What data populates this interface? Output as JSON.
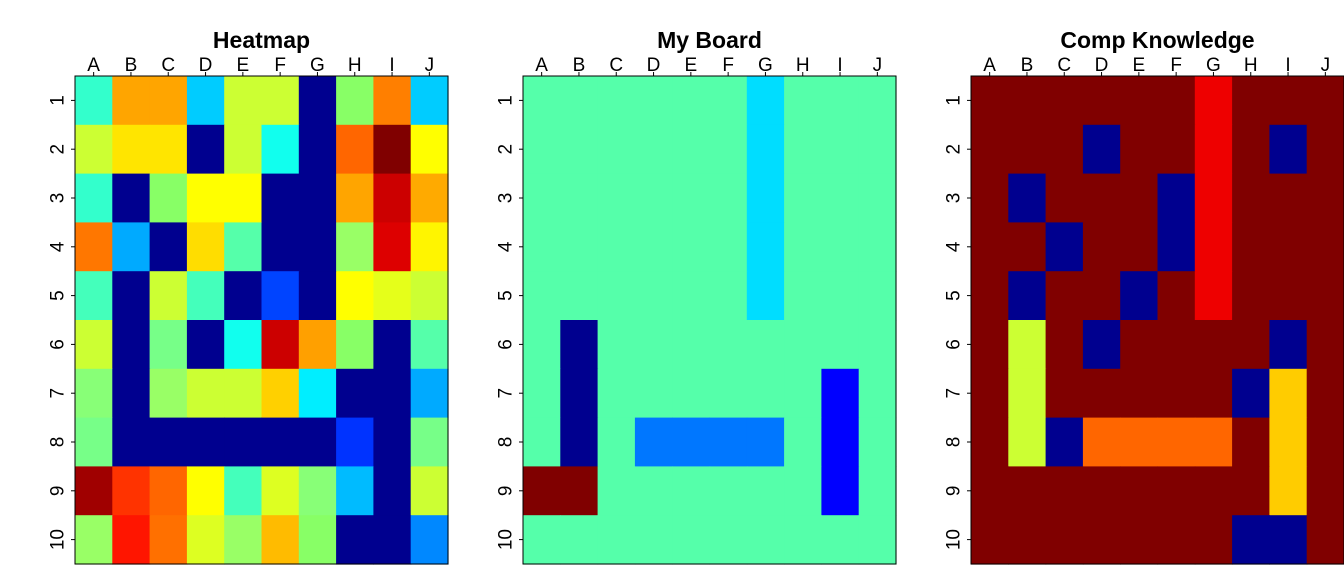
{
  "columns": [
    "A",
    "B",
    "C",
    "D",
    "E",
    "F",
    "G",
    "H",
    "I",
    "J"
  ],
  "rows": [
    "1",
    "2",
    "3",
    "4",
    "5",
    "6",
    "7",
    "8",
    "9",
    "10"
  ],
  "chart_data": [
    {
      "type": "heatmap",
      "title": "Heatmap",
      "xlabel": "",
      "ylabel": "",
      "x_tick_labels": [
        "A",
        "B",
        "C",
        "D",
        "E",
        "F",
        "G",
        "H",
        "I",
        "J"
      ],
      "y_tick_labels": [
        "1",
        "2",
        "3",
        "4",
        "5",
        "6",
        "7",
        "8",
        "9",
        "10"
      ],
      "x_axis_position": "top",
      "grid": false,
      "legend": false,
      "cells": [
        [
          "#33FFCC",
          "#FFA500",
          "#FFA500",
          "#00CCFF",
          "#CCFF33",
          "#CCFF33",
          "#00008F",
          "#88FF66",
          "#FF7F00",
          "#00CCFF"
        ],
        [
          "#CCFF33",
          "#FFE500",
          "#FFE500",
          "#00008F",
          "#CCFF33",
          "#11FFEE",
          "#00008F",
          "#FF6600",
          "#800000",
          "#FFFF00"
        ],
        [
          "#33FFCC",
          "#00008F",
          "#88FF66",
          "#FFFF00",
          "#FFFF00",
          "#00008F",
          "#00008F",
          "#FFA500",
          "#CC0000",
          "#FFAA00"
        ],
        [
          "#FF7700",
          "#00AAFF",
          "#00008F",
          "#FFDD00",
          "#55FFAA",
          "#00008F",
          "#00008F",
          "#99FF66",
          "#DD0000",
          "#FFF500"
        ],
        [
          "#44FFBB",
          "#00008F",
          "#CCFF33",
          "#44FFBB",
          "#00008F",
          "#0044FF",
          "#00008F",
          "#FFFF00",
          "#E5FF1A",
          "#CCFF33"
        ],
        [
          "#CCFF33",
          "#00008F",
          "#77FF88",
          "#00008F",
          "#11FFEE",
          "#CC0000",
          "#FFA000",
          "#88FF66",
          "#00008F",
          "#55FFAA"
        ],
        [
          "#88FF77",
          "#00008F",
          "#99FF66",
          "#CCFF33",
          "#CCFF33",
          "#FFD000",
          "#00EEFF",
          "#00008F",
          "#00008F",
          "#00AAFF"
        ],
        [
          "#77FF88",
          "#00008F",
          "#00008F",
          "#00008F",
          "#00008F",
          "#00008F",
          "#00008F",
          "#0033FF",
          "#00008F",
          "#77FF88"
        ],
        [
          "#A00000",
          "#FF3300",
          "#FF6600",
          "#FFFF00",
          "#44FFBB",
          "#DDFF22",
          "#88FF77",
          "#00BBFF",
          "#00008F",
          "#CCFF33"
        ],
        [
          "#99FF66",
          "#FF1500",
          "#FF7000",
          "#DDFF22",
          "#99FF66",
          "#FFBB00",
          "#88FF66",
          "#00008F",
          "#00008F",
          "#0088FF"
        ]
      ]
    },
    {
      "type": "heatmap",
      "title": "My Board",
      "xlabel": "",
      "ylabel": "",
      "x_tick_labels": [
        "A",
        "B",
        "C",
        "D",
        "E",
        "F",
        "G",
        "H",
        "I",
        "J"
      ],
      "y_tick_labels": [
        "1",
        "2",
        "3",
        "4",
        "5",
        "6",
        "7",
        "8",
        "9",
        "10"
      ],
      "x_axis_position": "top",
      "grid": false,
      "legend": false,
      "cells": [
        [
          "#55FFAA",
          "#55FFAA",
          "#55FFAA",
          "#55FFAA",
          "#55FFAA",
          "#55FFAA",
          "#00DDFF",
          "#55FFAA",
          "#55FFAA",
          "#55FFAA"
        ],
        [
          "#55FFAA",
          "#55FFAA",
          "#55FFAA",
          "#55FFAA",
          "#55FFAA",
          "#55FFAA",
          "#00DDFF",
          "#55FFAA",
          "#55FFAA",
          "#55FFAA"
        ],
        [
          "#55FFAA",
          "#55FFAA",
          "#55FFAA",
          "#55FFAA",
          "#55FFAA",
          "#55FFAA",
          "#00DDFF",
          "#55FFAA",
          "#55FFAA",
          "#55FFAA"
        ],
        [
          "#55FFAA",
          "#55FFAA",
          "#55FFAA",
          "#55FFAA",
          "#55FFAA",
          "#55FFAA",
          "#00DDFF",
          "#55FFAA",
          "#55FFAA",
          "#55FFAA"
        ],
        [
          "#55FFAA",
          "#55FFAA",
          "#55FFAA",
          "#55FFAA",
          "#55FFAA",
          "#55FFAA",
          "#00DDFF",
          "#55FFAA",
          "#55FFAA",
          "#55FFAA"
        ],
        [
          "#55FFAA",
          "#00008F",
          "#55FFAA",
          "#55FFAA",
          "#55FFAA",
          "#55FFAA",
          "#55FFAA",
          "#55FFAA",
          "#55FFAA",
          "#55FFAA"
        ],
        [
          "#55FFAA",
          "#00008F",
          "#55FFAA",
          "#55FFAA",
          "#55FFAA",
          "#55FFAA",
          "#55FFAA",
          "#55FFAA",
          "#0000FF",
          "#55FFAA"
        ],
        [
          "#55FFAA",
          "#00008F",
          "#55FFAA",
          "#0077FF",
          "#0077FF",
          "#0077FF",
          "#0077FF",
          "#55FFAA",
          "#0000FF",
          "#55FFAA"
        ],
        [
          "#800000",
          "#800000",
          "#55FFAA",
          "#55FFAA",
          "#55FFAA",
          "#55FFAA",
          "#55FFAA",
          "#55FFAA",
          "#0000FF",
          "#55FFAA"
        ],
        [
          "#55FFAA",
          "#55FFAA",
          "#55FFAA",
          "#55FFAA",
          "#55FFAA",
          "#55FFAA",
          "#55FFAA",
          "#55FFAA",
          "#55FFAA",
          "#55FFAA"
        ]
      ]
    },
    {
      "type": "heatmap",
      "title": "Comp Knowledge",
      "xlabel": "",
      "ylabel": "",
      "x_tick_labels": [
        "A",
        "B",
        "C",
        "D",
        "E",
        "F",
        "G",
        "H",
        "I",
        "J"
      ],
      "y_tick_labels": [
        "1",
        "2",
        "3",
        "4",
        "5",
        "6",
        "7",
        "8",
        "9",
        "10"
      ],
      "x_axis_position": "top",
      "grid": false,
      "legend": false,
      "cells": [
        [
          "#800000",
          "#800000",
          "#800000",
          "#800000",
          "#800000",
          "#800000",
          "#EE0000",
          "#800000",
          "#800000",
          "#800000"
        ],
        [
          "#800000",
          "#800000",
          "#800000",
          "#00008F",
          "#800000",
          "#800000",
          "#EE0000",
          "#800000",
          "#00008F",
          "#800000"
        ],
        [
          "#800000",
          "#00008F",
          "#800000",
          "#800000",
          "#800000",
          "#00008F",
          "#EE0000",
          "#800000",
          "#800000",
          "#800000"
        ],
        [
          "#800000",
          "#800000",
          "#00008F",
          "#800000",
          "#800000",
          "#00008F",
          "#EE0000",
          "#800000",
          "#800000",
          "#800000"
        ],
        [
          "#800000",
          "#00008F",
          "#800000",
          "#800000",
          "#00008F",
          "#800000",
          "#EE0000",
          "#800000",
          "#800000",
          "#800000"
        ],
        [
          "#800000",
          "#CCFF33",
          "#800000",
          "#00008F",
          "#800000",
          "#800000",
          "#800000",
          "#800000",
          "#00008F",
          "#800000"
        ],
        [
          "#800000",
          "#CCFF33",
          "#800000",
          "#800000",
          "#800000",
          "#800000",
          "#800000",
          "#00008F",
          "#FFCC00",
          "#800000"
        ],
        [
          "#800000",
          "#CCFF33",
          "#00008F",
          "#FF6600",
          "#FF6600",
          "#FF6600",
          "#FF6600",
          "#800000",
          "#FFCC00",
          "#800000"
        ],
        [
          "#800000",
          "#800000",
          "#800000",
          "#800000",
          "#800000",
          "#800000",
          "#800000",
          "#800000",
          "#FFCC00",
          "#800000"
        ],
        [
          "#800000",
          "#800000",
          "#800000",
          "#800000",
          "#800000",
          "#800000",
          "#800000",
          "#00008F",
          "#00008F",
          "#800000"
        ]
      ]
    }
  ]
}
